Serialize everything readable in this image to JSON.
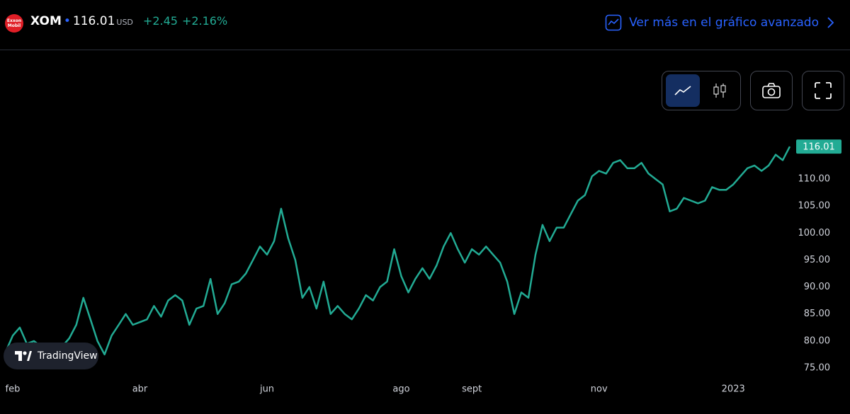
{
  "header": {
    "logo": "Exxon Mobil",
    "symbol": "XOM",
    "price": "116.01",
    "currency": "USD",
    "change": "+2.45",
    "change_percent": "+2.16%",
    "link": "Ver más en el gráfico avanzado"
  },
  "badge": "TradingView",
  "chart_data": {
    "type": "line",
    "categories": [
      null,
      "feb",
      null,
      null,
      null,
      null,
      null,
      null,
      null,
      null,
      null,
      null,
      null,
      null,
      null,
      null,
      null,
      null,
      null,
      "abr",
      null,
      null,
      null,
      null,
      null,
      null,
      null,
      null,
      null,
      null,
      null,
      null,
      null,
      null,
      null,
      null,
      null,
      "jun",
      null,
      null,
      null,
      null,
      null,
      null,
      null,
      null,
      null,
      null,
      null,
      null,
      null,
      null,
      null,
      null,
      null,
      null,
      "ago",
      null,
      null,
      null,
      null,
      null,
      null,
      null,
      null,
      null,
      "sept",
      null,
      null,
      null,
      null,
      null,
      null,
      null,
      null,
      null,
      null,
      null,
      null,
      null,
      null,
      null,
      null,
      null,
      "nov",
      null,
      null,
      null,
      null,
      null,
      null,
      null,
      null,
      null,
      null,
      null,
      null,
      null,
      null,
      null,
      null,
      null,
      null,
      "2023",
      null,
      null,
      null,
      null,
      null,
      null,
      null,
      null
    ],
    "series": [
      {
        "name": "XOM",
        "color": "#22ab94",
        "values": [
          78,
          81,
          82.5,
          79.5,
          80,
          79,
          79.5,
          78.5,
          79,
          80.5,
          83,
          88,
          84,
          80,
          77.5,
          81,
          83,
          85,
          83,
          83.5,
          84,
          86.5,
          84.5,
          87.5,
          88.5,
          87.5,
          83,
          86,
          86.5,
          91.5,
          85,
          87,
          90.5,
          91,
          92.5,
          95,
          97.5,
          96,
          98.5,
          104.5,
          99,
          95,
          88,
          90,
          86,
          91,
          85,
          86.5,
          85,
          84,
          86,
          88.5,
          87.5,
          90,
          91,
          97,
          92,
          89,
          91.5,
          93.5,
          91.5,
          94,
          97.5,
          100,
          97,
          94.5,
          97,
          96,
          97.5,
          96,
          94.5,
          91,
          85,
          89,
          88,
          96,
          101.5,
          98.5,
          101,
          101,
          103.5,
          106,
          107,
          110.5,
          111.5,
          111,
          113,
          113.5,
          112,
          112,
          113,
          111,
          110,
          109,
          104,
          104.5,
          106.5,
          106,
          105.5,
          106,
          108.5,
          108,
          108,
          109,
          110.5,
          112,
          112.5,
          111.5,
          112.5,
          114.5,
          113.5,
          116.01
        ]
      }
    ],
    "ylim": [
      72,
      122
    ],
    "yticks": [
      {
        "value": 75,
        "label": "75.00"
      },
      {
        "value": 80,
        "label": "80.00"
      },
      {
        "value": 85,
        "label": "85.00"
      },
      {
        "value": 90,
        "label": "90.00"
      },
      {
        "value": 95,
        "label": "95.00"
      },
      {
        "value": 100,
        "label": "100.00"
      },
      {
        "value": 105,
        "label": "105.00"
      },
      {
        "value": 110,
        "label": "110.00"
      }
    ],
    "grid": false
  }
}
